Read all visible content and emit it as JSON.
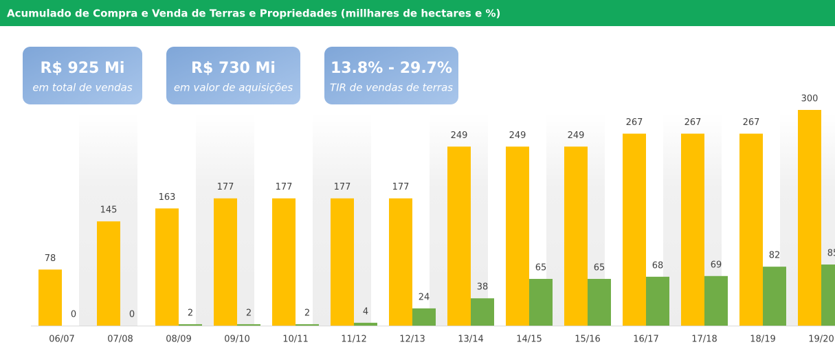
{
  "chart_data": {
    "type": "bar",
    "title": "Acumulado de Compra e Venda de Terras e Propriedades (millhares de hectares e %)",
    "annotations": [
      {
        "text": "R$ 925 Mi",
        "subtext": "em total de vendas"
      },
      {
        "text": "R$ 730 Mi",
        "subtext": "em valor de aquisições"
      },
      {
        "text": "13.8% - 29.7%",
        "subtext": "TIR de vendas de terras"
      }
    ],
    "categories": [
      "06/07",
      "07/08",
      "08/09",
      "09/10",
      "10/11",
      "11/12",
      "12/13",
      "13/14",
      "14/15",
      "15/16",
      "16/17",
      "17/18",
      "18/19",
      "19/20"
    ],
    "series": [
      {
        "color": "#FFC000",
        "values": [
          78,
          145,
          163,
          177,
          177,
          177,
          177,
          249,
          249,
          249,
          267,
          267,
          267,
          300
        ]
      },
      {
        "color": "#70AD47",
        "values": [
          0,
          0,
          2,
          2,
          2,
          4,
          24,
          38,
          65,
          65,
          68,
          69,
          82,
          85
        ]
      }
    ]
  }
}
